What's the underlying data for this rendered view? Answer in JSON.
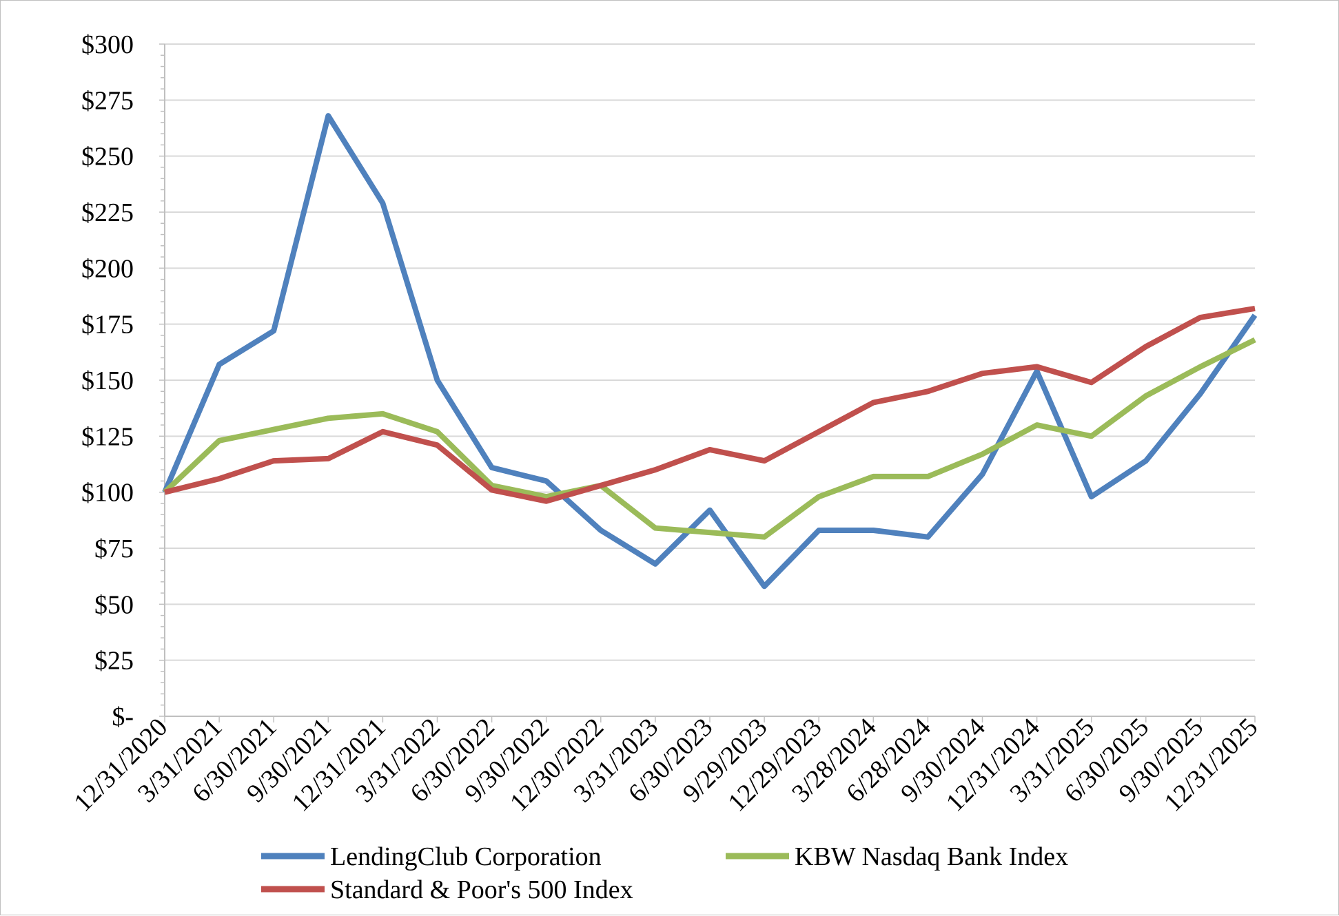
{
  "chart_data": {
    "type": "line",
    "title": "",
    "xlabel": "",
    "ylabel": "",
    "ylim": [
      0,
      300
    ],
    "y_major_step": 25,
    "y_minor_step": 5,
    "y_tick_labels": [
      "$-",
      "$25",
      "$50",
      "$75",
      "$100",
      "$125",
      "$150",
      "$175",
      "$200",
      "$225",
      "$250",
      "$275",
      "$300"
    ],
    "grid": true,
    "legend_position": "bottom",
    "categories": [
      "12/31/2020",
      "3/31/2021",
      "6/30/2021",
      "9/30/2021",
      "12/31/2021",
      "3/31/2022",
      "6/30/2022",
      "9/30/2022",
      "12/30/2022",
      "3/31/2023",
      "6/30/2023",
      "9/29/2023",
      "12/29/2023",
      "3/28/2024",
      "6/28/2024",
      "9/30/2024",
      "12/31/2024",
      "3/31/2025",
      "6/30/2025",
      "9/30/2025",
      "12/31/2025"
    ],
    "series": [
      {
        "name": "LendingClub Corporation",
        "color": "#4f81bd",
        "values": [
          100,
          157,
          172,
          268,
          229,
          150,
          111,
          105,
          83,
          68,
          92,
          58,
          83,
          83,
          80,
          108,
          154,
          98,
          114,
          144,
          179
        ]
      },
      {
        "name": "KBW Nasdaq Bank Index",
        "color": "#9bbb59",
        "values": [
          100,
          123,
          128,
          133,
          135,
          127,
          103,
          98,
          103,
          84,
          82,
          80,
          98,
          107,
          107,
          117,
          130,
          125,
          143,
          156,
          168
        ]
      },
      {
        "name": "Standard & Poor's 500 Index",
        "color": "#c0504d",
        "values": [
          100,
          106,
          114,
          115,
          127,
          121,
          101,
          96,
          103,
          110,
          119,
          114,
          127,
          140,
          145,
          153,
          156,
          149,
          165,
          178,
          182
        ]
      }
    ]
  }
}
